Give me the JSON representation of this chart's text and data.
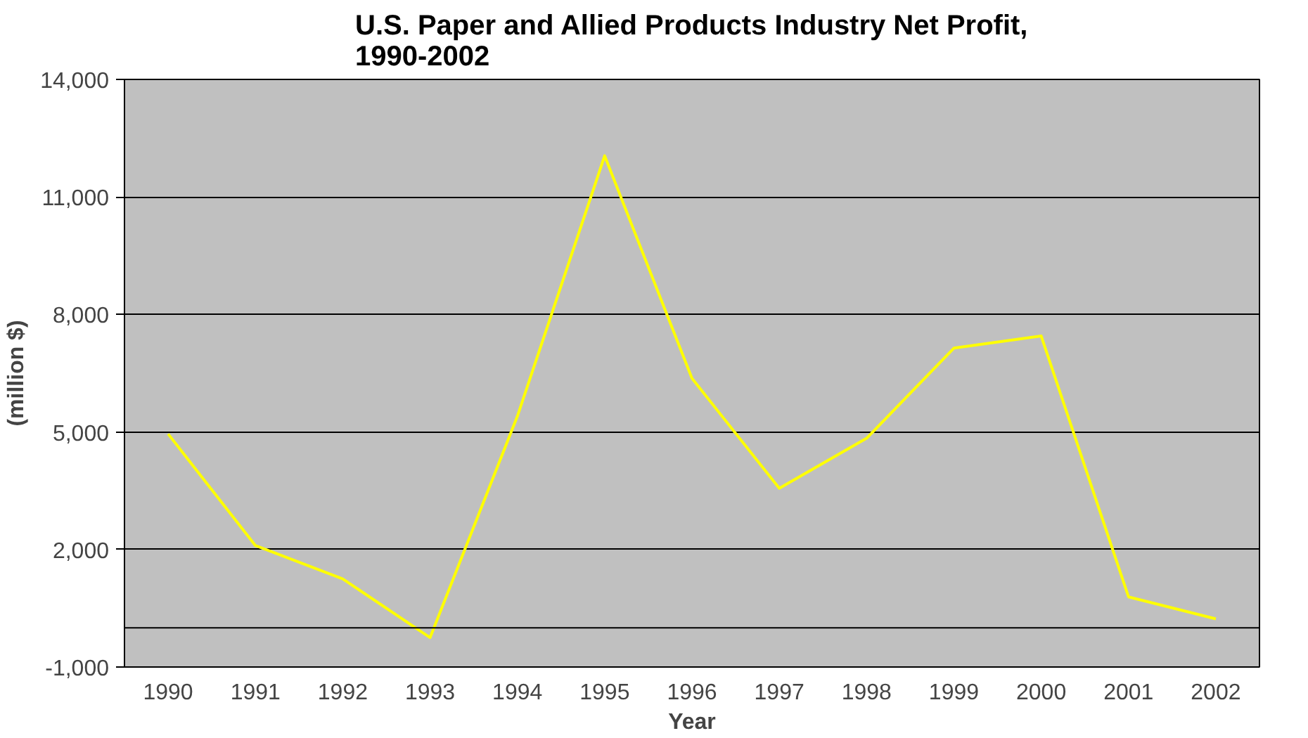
{
  "chart_data": {
    "type": "line",
    "title": "U.S. Paper and Allied Products Industry Net Profit,\n1990-2002",
    "xlabel": "Year",
    "ylabel": "(million $)",
    "categories": [
      "1990",
      "1991",
      "1992",
      "1993",
      "1994",
      "1995",
      "1996",
      "1997",
      "1998",
      "1999",
      "2000",
      "2001",
      "2002"
    ],
    "series": [
      {
        "color": "#ffff00",
        "values": [
          4950,
          2100,
          1250,
          -250,
          5400,
          12050,
          6370,
          3560,
          4840,
          7140,
          7450,
          790,
          230
        ]
      }
    ],
    "ylim": [
      -1000,
      14000
    ],
    "yticks": [
      {
        "value": -1000,
        "label": "-1,000"
      },
      {
        "value": 2000,
        "label": "2,000"
      },
      {
        "value": 5000,
        "label": "5,000"
      },
      {
        "value": 8000,
        "label": "8,000"
      },
      {
        "value": 11000,
        "label": "11,000"
      },
      {
        "value": 14000,
        "label": "14,000"
      }
    ],
    "ref_lines": [
      {
        "axis": "y",
        "value": 0,
        "color": "#000000"
      }
    ],
    "grid": "y",
    "marker": "none",
    "line_style": "solid"
  }
}
